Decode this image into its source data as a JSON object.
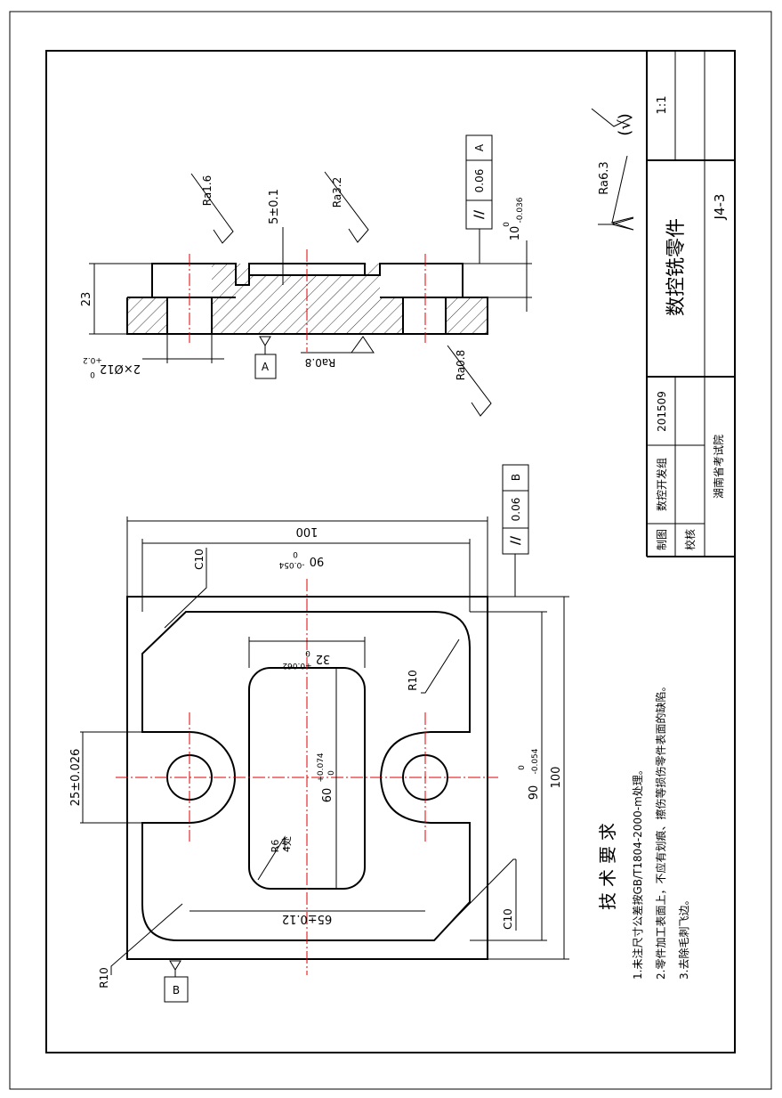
{
  "title_block": {
    "scale": "1:1",
    "part_name": "数控铣零件",
    "drawing_number": "J4-3",
    "drawn_label": "制图",
    "drawn_by": "数控开发组",
    "date": "201509",
    "check_label": "校核",
    "organization": "湖南省考试院"
  },
  "roughness": {
    "general": "Ra6.3",
    "general_suffix": "(√)",
    "top_left": "Ra1.6",
    "top_mid": "Ra3.2",
    "bottom_mid": "Ra0.8",
    "right": "Ra0.8"
  },
  "section_view": {
    "dim_height": "23",
    "dim_depth": "5±0.1",
    "dim_ten_main": "10",
    "dim_ten_upper": "0",
    "dim_ten_lower": "-0.036",
    "dim_holes_main": "2×Ø12",
    "dim_holes_upper": "+0.2",
    "dim_holes_lower": "0",
    "datum_a": "A",
    "parallel_symbol": "//",
    "parallel_tol": "0.06",
    "parallel_ref": "A"
  },
  "plan_view": {
    "dim_100_top": "100",
    "dim_90_main": "90",
    "dim_90_upper": "0",
    "dim_90_lower": "-0.054",
    "dim_32_main": "32",
    "dim_32_upper": "+0.062",
    "dim_32_lower": "0",
    "dim_60_main": "60",
    "dim_60_upper": "+0.074",
    "dim_60_lower": "0",
    "dim_65": "65±0.12",
    "dim_25": "25±0.026",
    "dim_100_right": "100",
    "dim_90r_main": "90",
    "dim_90r_upper": "0",
    "dim_90r_lower": "-0.054",
    "r10_a": "R10",
    "r10_b": "R10",
    "r6": "R6",
    "r6_count": "4处",
    "c10_a": "C10",
    "c10_b": "C10",
    "datum_b": "B",
    "parallel_symbol": "//",
    "parallel_tol": "0.06",
    "parallel_ref": "B"
  },
  "notes": {
    "heading": "技术要求",
    "items": [
      "1.未注尺寸公差按GB/T1804-2000-m处理。",
      "2.零件加工表面上，不应有划痕、擦伤等损伤零件表面的缺陷。",
      "3.去除毛刺飞边。"
    ]
  }
}
